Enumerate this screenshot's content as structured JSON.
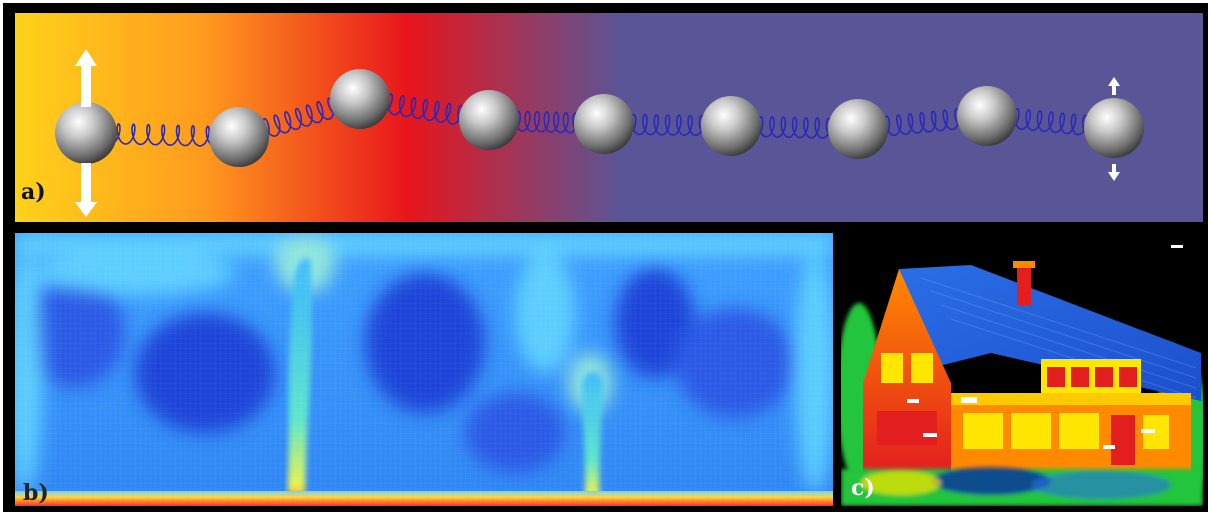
{
  "panels": {
    "a": {
      "label": "a)",
      "gradient_colors": [
        "#ffd21a",
        "#ff9a1e",
        "#e8151b",
        "#5a5596"
      ],
      "background": "#5a5596",
      "atom_count": 9,
      "arrows": "arrow-icon"
    },
    "b": {
      "label": "b)",
      "colormap": [
        "#1d2fe0",
        "#2f6cf0",
        "#39b7ff",
        "#ffff3a",
        "#ff2a1a"
      ]
    },
    "c": {
      "label": "c)",
      "palette": [
        "#e31e1e",
        "#ff8a00",
        "#ffe600",
        "#22c53a",
        "#2a6ee6",
        "#0a1bb0"
      ]
    }
  }
}
